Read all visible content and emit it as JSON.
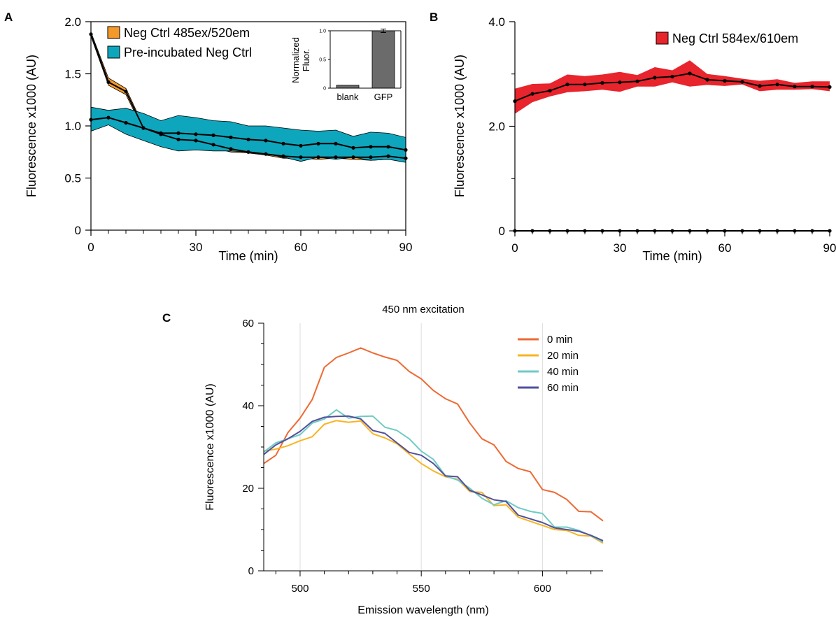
{
  "colors": {
    "orange": "#f39a2b",
    "teal": "#0ea6bd",
    "red": "#e8242c",
    "c0": "#ee6a33",
    "c20": "#f7b523",
    "c40": "#6fcbc3",
    "c60": "#52509c",
    "bar": "#6b6b6b"
  },
  "chart_data": [
    {
      "id": "A",
      "panel_label": "A",
      "type": "line",
      "xlabel": "Time (min)",
      "ylabel": "Fluorescence x1000 (AU)",
      "xlim": [
        0,
        90
      ],
      "ylim": [
        0,
        2.0
      ],
      "xticks": [
        0,
        30,
        60,
        90
      ],
      "xtick_labels": [
        "0",
        "30",
        "60",
        "90"
      ],
      "yticks": [
        0,
        0.5,
        1.0,
        1.5,
        2.0
      ],
      "ytick_labels": [
        "0",
        "0.5",
        "1.0",
        "1.5",
        "2.0"
      ],
      "legend_position": "top-left",
      "x": [
        0,
        5,
        10,
        15,
        20,
        25,
        30,
        35,
        40,
        45,
        50,
        55,
        60,
        65,
        70,
        75,
        80,
        85,
        90
      ],
      "series": [
        {
          "name": "Neg Ctrl 485ex/520em",
          "color_key": "orange",
          "mean": [
            1.88,
            1.42,
            1.33,
            0.98,
            0.92,
            0.87,
            0.86,
            0.82,
            0.78,
            0.75,
            0.73,
            0.71,
            0.7,
            0.7,
            0.7,
            0.7,
            0.7,
            0.71,
            0.69
          ],
          "lower": [
            1.86,
            1.39,
            1.3,
            0.96,
            0.9,
            0.84,
            0.83,
            0.79,
            0.75,
            0.74,
            0.72,
            0.69,
            0.69,
            0.68,
            0.69,
            0.68,
            0.67,
            0.68,
            0.67
          ],
          "upper": [
            1.9,
            1.46,
            1.36,
            1.0,
            0.94,
            0.89,
            0.88,
            0.84,
            0.8,
            0.77,
            0.75,
            0.73,
            0.72,
            0.71,
            0.71,
            0.72,
            0.72,
            0.73,
            0.71
          ]
        },
        {
          "name": "Pre-incubated Neg Ctrl",
          "color_key": "teal",
          "mean": [
            1.06,
            1.08,
            1.03,
            0.98,
            0.93,
            0.93,
            0.92,
            0.91,
            0.89,
            0.87,
            0.86,
            0.83,
            0.81,
            0.83,
            0.83,
            0.79,
            0.8,
            0.8,
            0.77
          ],
          "lower": [
            0.95,
            1.01,
            0.92,
            0.86,
            0.8,
            0.76,
            0.77,
            0.76,
            0.76,
            0.75,
            0.73,
            0.7,
            0.66,
            0.7,
            0.68,
            0.7,
            0.67,
            0.68,
            0.65
          ],
          "upper": [
            1.18,
            1.15,
            1.17,
            1.12,
            1.05,
            1.1,
            1.08,
            1.05,
            1.04,
            1.0,
            1.0,
            0.98,
            0.96,
            0.95,
            0.96,
            0.9,
            0.94,
            0.93,
            0.89
          ]
        }
      ],
      "inset": {
        "type": "bar",
        "ylabel_lines": [
          "Normalized",
          "Fluor."
        ],
        "categories": [
          "blank",
          "GFP"
        ],
        "values": [
          0.05,
          1.0
        ],
        "errors": [
          0.0,
          0.03
        ],
        "ylim": [
          0,
          1.0
        ],
        "yticks": [
          0,
          0.5,
          1.0
        ],
        "ytick_labels": [
          "0",
          "0.5",
          "1.0"
        ]
      }
    },
    {
      "id": "B",
      "panel_label": "B",
      "type": "line",
      "xlabel": "Time (min)",
      "ylabel": "Fluorescence x1000 (AU)",
      "xlim": [
        0,
        90
      ],
      "ylim": [
        0,
        4.0
      ],
      "xticks": [
        0,
        30,
        60,
        90
      ],
      "xtick_labels": [
        "0",
        "30",
        "60",
        "90"
      ],
      "yticks": [
        0,
        2.0,
        4.0
      ],
      "ytick_labels": [
        "0",
        "2.0",
        "4.0"
      ],
      "legend_position": "top-right",
      "x": [
        0,
        5,
        10,
        15,
        20,
        25,
        30,
        35,
        40,
        45,
        50,
        55,
        60,
        65,
        70,
        75,
        80,
        85,
        90
      ],
      "series": [
        {
          "name": "Neg Ctrl 584ex/610em",
          "color_key": "red",
          "mean": [
            2.48,
            2.62,
            2.68,
            2.8,
            2.8,
            2.83,
            2.84,
            2.86,
            2.93,
            2.95,
            3.01,
            2.89,
            2.87,
            2.85,
            2.77,
            2.8,
            2.76,
            2.76,
            2.75
          ],
          "lower": [
            2.24,
            2.46,
            2.57,
            2.65,
            2.67,
            2.7,
            2.66,
            2.76,
            2.76,
            2.84,
            2.76,
            2.79,
            2.77,
            2.8,
            2.67,
            2.7,
            2.7,
            2.71,
            2.67
          ],
          "upper": [
            2.72,
            2.81,
            2.82,
            2.99,
            2.96,
            2.99,
            3.04,
            2.98,
            3.13,
            3.07,
            3.26,
            3.0,
            2.96,
            2.91,
            2.87,
            2.9,
            2.83,
            2.86,
            2.86
          ]
        },
        {
          "name": "",
          "color_key": "black",
          "mean": [
            0,
            0,
            0,
            0,
            0,
            0,
            0,
            0,
            0,
            0,
            0,
            0,
            0,
            0,
            0,
            0,
            0,
            0,
            0
          ]
        }
      ]
    },
    {
      "id": "C",
      "panel_label": "C",
      "type": "line",
      "title": "450 nm excitation",
      "xlabel": "Emission wavelength (nm)",
      "ylabel": "Fluorescence x1000 (AU)",
      "xlim": [
        485,
        625
      ],
      "ylim": [
        0,
        60
      ],
      "xticks": [
        500,
        550,
        600
      ],
      "xtick_labels": [
        "500",
        "550",
        "600"
      ],
      "yticks": [
        0,
        20,
        40,
        60
      ],
      "ytick_labels": [
        "0",
        "20",
        "40",
        "60"
      ],
      "grid": "vertical",
      "legend_position": "top-right",
      "x": [
        485,
        490,
        495,
        500,
        505,
        510,
        515,
        520,
        525,
        530,
        535,
        540,
        545,
        550,
        555,
        560,
        565,
        570,
        575,
        580,
        585,
        590,
        595,
        600,
        605,
        610,
        615,
        620,
        625
      ],
      "series": [
        {
          "name": "0 min",
          "color_key": "c0",
          "values": [
            26.0,
            28.0,
            33.5,
            37.0,
            41.5,
            49.3,
            51.7,
            52.8,
            54.0,
            52.8,
            51.8,
            51.0,
            48.3,
            46.5,
            43.7,
            41.7,
            40.4,
            35.8,
            32.0,
            30.5,
            26.5,
            24.8,
            24.0,
            19.7,
            19.0,
            17.3,
            14.4,
            14.3,
            12.1
          ]
        },
        {
          "name": "20 min",
          "color_key": "c20",
          "values": [
            29.0,
            29.5,
            30.3,
            31.5,
            32.5,
            35.5,
            36.4,
            36.0,
            36.3,
            33.2,
            32.2,
            30.8,
            28.3,
            26.0,
            24.2,
            22.8,
            22.2,
            19.2,
            19.0,
            15.8,
            16.0,
            13.0,
            12.0,
            11.0,
            10.0,
            9.8,
            8.6,
            8.4,
            6.7
          ]
        },
        {
          "name": "40 min",
          "color_key": "c40",
          "values": [
            28.8,
            31.0,
            32.0,
            33.0,
            35.8,
            36.8,
            39.0,
            37.0,
            37.4,
            37.5,
            34.8,
            34.0,
            32.0,
            29.0,
            27.0,
            23.0,
            22.0,
            20.0,
            17.6,
            16.0,
            17.0,
            15.3,
            14.4,
            13.9,
            10.6,
            10.6,
            9.8,
            8.5,
            7.0
          ]
        },
        {
          "name": "60 min",
          "color_key": "c60",
          "values": [
            28.2,
            30.5,
            32.0,
            33.8,
            36.2,
            37.2,
            37.4,
            37.5,
            36.8,
            34.0,
            33.3,
            31.0,
            28.7,
            28.0,
            26.0,
            23.0,
            22.8,
            19.5,
            18.4,
            17.2,
            16.8,
            13.5,
            12.6,
            11.7,
            10.4,
            10.0,
            9.6,
            8.6,
            7.3
          ]
        }
      ]
    }
  ]
}
